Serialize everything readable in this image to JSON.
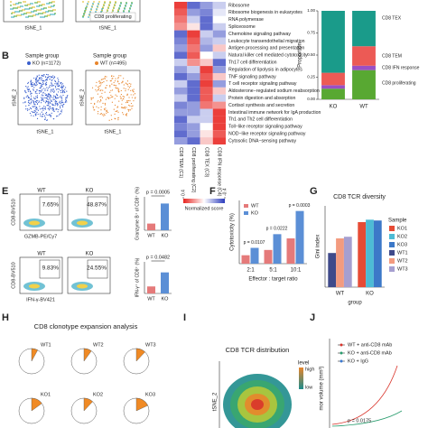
{
  "figure": {
    "panel_labels": [
      "B",
      "E",
      "F",
      "G",
      "H",
      "I",
      "J"
    ],
    "tsne_top": {
      "x_label": "tSNE_1",
      "cluster_label": "CD8 proliferating"
    },
    "panel_b": {
      "titles": [
        "Sample group",
        "Sample group"
      ],
      "groups": [
        "KO (n=1172)",
        "WT (n=495)"
      ],
      "colors": [
        "#3a5fcd",
        "#e8852b"
      ],
      "x_labels": [
        "tSNE_1",
        "tSNE_1"
      ],
      "y_labels": [
        "tSNE_2",
        "tSNE_2"
      ]
    },
    "panel_e": {
      "gates": [
        "7.65%",
        "48.87%",
        "9.83%",
        "24.55%"
      ],
      "col_labels": [
        "WT",
        "KO",
        "WT",
        "KO"
      ],
      "y_labels": [
        "CD8-BV510",
        "CD8-BV510"
      ],
      "x_labels": [
        "GZMB-PE/Cy7",
        "IFN-γ-BV421"
      ]
    },
    "panel_i": {
      "title": "CD8 TCR distribution",
      "y_label": "tSNE_2",
      "legend_title": "level",
      "legend": [
        "high",
        "low"
      ],
      "colors": [
        "#e8852b",
        "#1e8c8c"
      ]
    },
    "panel_j": {
      "legend": [
        "WT + anti-CD8 mAb",
        "KO + anti-CD8 mAb",
        "KO + IgG"
      ],
      "colors": [
        "#d9342b",
        "#2a9d6f",
        "#3a78d0"
      ],
      "p": "p = 0.0175",
      "y_label": "mor volume (mm³)"
    }
  },
  "chart_data": [
    {
      "type": "heatmap",
      "rows": [
        "Ribosome",
        "Ribosome biogenesis in eukaryotes",
        "RNA polymerase",
        "Spliceosome",
        "Chemokine signaling pathway",
        "Leukocyte transendothelial migration",
        "Antigen processing and presentation",
        "Natural killer cell mediated cytotoxicity",
        "Th17 cell differentiation",
        "Regulation of lipolysis in adipocytes",
        "TNF signaling pathway",
        "T cell receptor signaling pathway",
        "Aldosterone−regulated sodium reabsorption",
        "Protein digestion and absorption",
        "Cortisol synthesis and secretion",
        "Intestinal immune network for IgA production",
        "Th1 and Th2 cell differentiation",
        "Toll−like receptor signaling pathway",
        "NOD−like receptor signaling pathway",
        "Cytosolic DNA−sensing pathway"
      ],
      "columns": [
        "CD8 TEM (C1)",
        "CD8 proliferating (C2)",
        "CD8 TEX (C3)",
        "CD8 IFN response (C4)"
      ],
      "values": [
        [
          0.35,
          -0.3,
          -0.2,
          -0.1
        ],
        [
          0.3,
          -0.2,
          -0.25,
          -0.05
        ],
        [
          0.25,
          -0.1,
          -0.3,
          0.0
        ],
        [
          0.2,
          0.05,
          -0.3,
          -0.1
        ],
        [
          -0.3,
          0.35,
          -0.1,
          -0.2
        ],
        [
          -0.25,
          0.3,
          -0.15,
          -0.1
        ],
        [
          -0.2,
          0.25,
          -0.2,
          0.1
        ],
        [
          -0.3,
          0.3,
          0.0,
          -0.1
        ],
        [
          -0.1,
          0.2,
          0.1,
          -0.3
        ],
        [
          -0.2,
          -0.1,
          0.35,
          -0.2
        ],
        [
          -0.3,
          -0.2,
          0.3,
          0.1
        ],
        [
          -0.1,
          -0.3,
          0.35,
          -0.2
        ],
        [
          -0.2,
          -0.3,
          0.3,
          0.1
        ],
        [
          -0.1,
          -0.3,
          0.3,
          -0.1
        ],
        [
          -0.25,
          -0.2,
          0.25,
          0.2
        ],
        [
          -0.2,
          -0.2,
          -0.1,
          0.35
        ],
        [
          -0.3,
          -0.1,
          -0.1,
          0.35
        ],
        [
          -0.25,
          -0.2,
          0.0,
          0.35
        ],
        [
          -0.3,
          -0.2,
          0.05,
          0.3
        ],
        [
          -0.2,
          -0.3,
          0.1,
          0.35
        ]
      ],
      "legend_title": "Normalized score",
      "legend_lim": [
        0.4,
        -0.4
      ],
      "legend_ticks": [
        0.4,
        -0.4
      ],
      "colors": [
        "#e8241f",
        "#ffffff",
        "#2b3bbd"
      ]
    },
    {
      "type": "stacked_bar",
      "categories": [
        "KO",
        "WT"
      ],
      "y_label": "Proportion",
      "series": [
        {
          "name": "CD8 proliferating",
          "color": "#58a832",
          "values": [
            0.12,
            0.33
          ]
        },
        {
          "name": "CD8 IFN response",
          "color": "#9a4fc4",
          "values": [
            0.04,
            0.05
          ]
        },
        {
          "name": "CD8 TEM",
          "color": "#ec5a55",
          "values": [
            0.14,
            0.22
          ]
        },
        {
          "name": "CD8 TEX",
          "color": "#1a9b8a",
          "values": [
            0.7,
            0.4
          ]
        }
      ],
      "ylim": [
        0,
        1
      ],
      "yticks": [
        {
          "value": 0,
          "label": "0.00"
        },
        {
          "value": 0.25,
          "label": "0.25"
        },
        {
          "value": 0.5,
          "label": "0.50"
        },
        {
          "value": 0.75,
          "label": "0.75"
        },
        {
          "value": 1,
          "label": "1.00"
        }
      ]
    },
    {
      "type": "bar",
      "categories": [
        "WT",
        "KO"
      ],
      "values": [
        10,
        40
      ],
      "colors": [
        "#e57a7a",
        "#5b8fd6"
      ],
      "y_label": "Granzyme B⁺ of CD8⁺ (%)",
      "annotation": "p = 0.0005",
      "ylim": [
        0,
        50
      ]
    },
    {
      "type": "bar",
      "categories": [
        "WT",
        "KO"
      ],
      "values": [
        10,
        30
      ],
      "colors": [
        "#e57a7a",
        "#5b8fd6"
      ],
      "y_label": "IFN-γ⁺ of CD8⁺ (%)",
      "annotation": "p = 0.0482",
      "ylim": [
        0,
        45
      ]
    },
    {
      "type": "grouped_bar",
      "categories": [
        "2:1",
        "5:1",
        "10:1"
      ],
      "x_label": "Effector : target ratio",
      "y_label": "Cytotoxicity (%)",
      "series": [
        {
          "name": "WT",
          "color": "#e57a7a",
          "values": [
            8,
            13,
            24
          ]
        },
        {
          "name": "KO",
          "color": "#5b8fd6",
          "values": [
            15,
            28,
            50
          ]
        }
      ],
      "annotations": [
        "p = 0.0107",
        "p = 0.0222",
        "p = 0.0003"
      ],
      "ylim": [
        0,
        60
      ]
    },
    {
      "type": "grouped_bar",
      "title": "CD8 TCR diversity",
      "categories": [
        "WT",
        "KO"
      ],
      "x_label": "group",
      "y_label": "Gini index",
      "legend_title": "Sample",
      "series": [
        {
          "name": "KO1",
          "color": "#e64b35",
          "values": [
            null,
            0.8
          ]
        },
        {
          "name": "KO2",
          "color": "#4dbbd5",
          "values": [
            null,
            0.83
          ]
        },
        {
          "name": "KO3",
          "color": "#3c78c8",
          "values": [
            null,
            0.82
          ]
        },
        {
          "name": "WT1",
          "color": "#3f4a8a",
          "values": [
            0.42,
            null
          ]
        },
        {
          "name": "WT2",
          "color": "#f39b7f",
          "values": [
            0.6,
            null
          ]
        },
        {
          "name": "WT3",
          "color": "#a69fd0",
          "values": [
            0.62,
            null
          ]
        }
      ],
      "ylim": [
        0,
        1
      ]
    },
    {
      "type": "pie",
      "title": "CD8 clonotype expansion analysis",
      "categories": [
        "WT1",
        "WT2",
        "WT3",
        "KO1",
        "KO2",
        "KO3"
      ],
      "values": [
        8,
        10,
        12,
        15,
        12,
        18
      ],
      "color": "#f08a24",
      "total": 100
    }
  ]
}
